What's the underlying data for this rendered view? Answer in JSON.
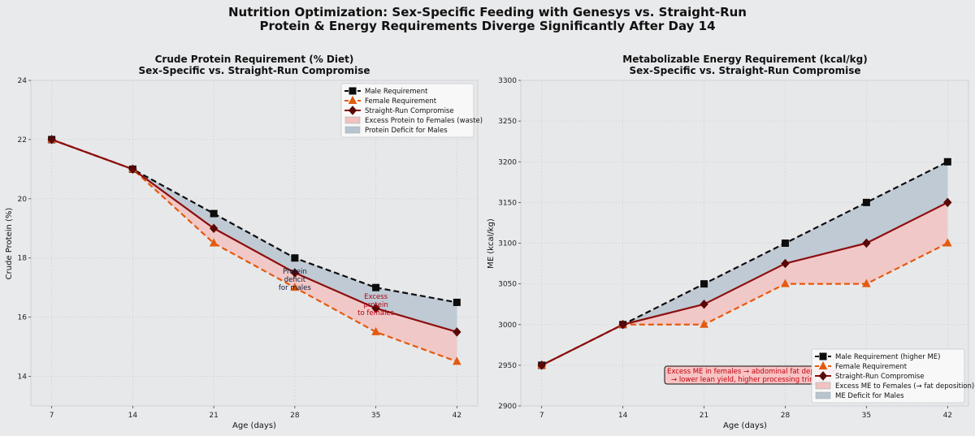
{
  "figure": {
    "title_line1": "Nutrition Optimization: Sex-Specific Feeding with Genesys vs. Straight-Run",
    "title_line2": "Protein & Energy Requirements Diverge Significantly After Day 14"
  },
  "colors": {
    "male": "#0d0d0d",
    "female": "#e35a0e",
    "straight_run": "#8c0e0e",
    "straight_run_marker": "#5a0707",
    "excess_fill": "#f2c2c2",
    "deficit_fill": "#b7c4d0",
    "background": "#e9eaec"
  },
  "chart_data": [
    {
      "type": "line",
      "title_line1": "Crude Protein Requirement (% Diet)",
      "title_line2": "Sex-Specific vs. Straight-Run Compromise",
      "xlabel": "Age (days)",
      "ylabel": "Crude Protein (%)",
      "x": [
        7,
        14,
        21,
        28,
        35,
        42
      ],
      "xticks": [
        "7",
        "14",
        "21",
        "28",
        "35",
        "42"
      ],
      "xlim": [
        5.2,
        43.8
      ],
      "ylim": [
        13,
        24
      ],
      "yticks": [
        "14",
        "16",
        "18",
        "20",
        "22",
        "24"
      ],
      "grid": true,
      "legend_position": "top-right",
      "series": [
        {
          "name": "Male Requirement",
          "values": [
            22.0,
            21.0,
            19.5,
            18.0,
            17.0,
            16.5
          ],
          "style": "dashed",
          "marker": "square"
        },
        {
          "name": "Female Requirement",
          "values": [
            22.0,
            21.0,
            18.5,
            17.0,
            15.5,
            14.5
          ],
          "style": "dashed",
          "marker": "triangle"
        },
        {
          "name": "Straight-Run Compromise",
          "values": [
            22.0,
            21.0,
            19.0,
            17.5,
            16.3,
            15.5
          ],
          "style": "solid",
          "marker": "diamond"
        }
      ],
      "fills": [
        {
          "name": "Excess Protein to Females (waste)"
        },
        {
          "name": "Protein Deficit for Males"
        }
      ],
      "annotations": [
        {
          "lines": [
            "Protein",
            "deficit",
            "for males"
          ],
          "x": 28,
          "y": 17.2,
          "color": "#0d1a33"
        },
        {
          "lines": [
            "Excess",
            "protein",
            "to females"
          ],
          "x": 35,
          "y": 16.35,
          "color": "#b3000f"
        }
      ]
    },
    {
      "type": "line",
      "title_line1": "Metabolizable Energy Requirement (kcal/kg)",
      "title_line2": "Sex-Specific vs. Straight-Run Compromise",
      "xlabel": "Age (days)",
      "ylabel": "ME (kcal/kg)",
      "x": [
        7,
        14,
        21,
        28,
        35,
        42
      ],
      "xticks": [
        "7",
        "14",
        "21",
        "28",
        "35",
        "42"
      ],
      "xlim": [
        5.2,
        43.8
      ],
      "ylim": [
        2900,
        3300
      ],
      "yticks": [
        "2900",
        "2950",
        "3000",
        "3050",
        "3100",
        "3150",
        "3200",
        "3250",
        "3300"
      ],
      "grid": true,
      "legend_position": "bottom-right",
      "series": [
        {
          "name": "Male Requirement (higher ME)",
          "values": [
            2950,
            3000,
            3050,
            3100,
            3150,
            3200
          ],
          "style": "dashed",
          "marker": "square"
        },
        {
          "name": "Female Requirement",
          "values": [
            2950,
            3000,
            3000,
            3050,
            3050,
            3100
          ],
          "style": "dashed",
          "marker": "triangle"
        },
        {
          "name": "Straight-Run Compromise",
          "values": [
            2950,
            3000,
            3025,
            3075,
            3100,
            3150
          ],
          "style": "solid",
          "marker": "diamond"
        }
      ],
      "fills": [
        {
          "name": "Excess ME to Females (→ fat deposition)"
        },
        {
          "name": "ME Deficit for Males"
        }
      ],
      "annotation_box": {
        "line1": "Excess ME in females → abdominal fat deposition",
        "line2": "→ lower lean yield, higher processing trim loss"
      }
    }
  ]
}
